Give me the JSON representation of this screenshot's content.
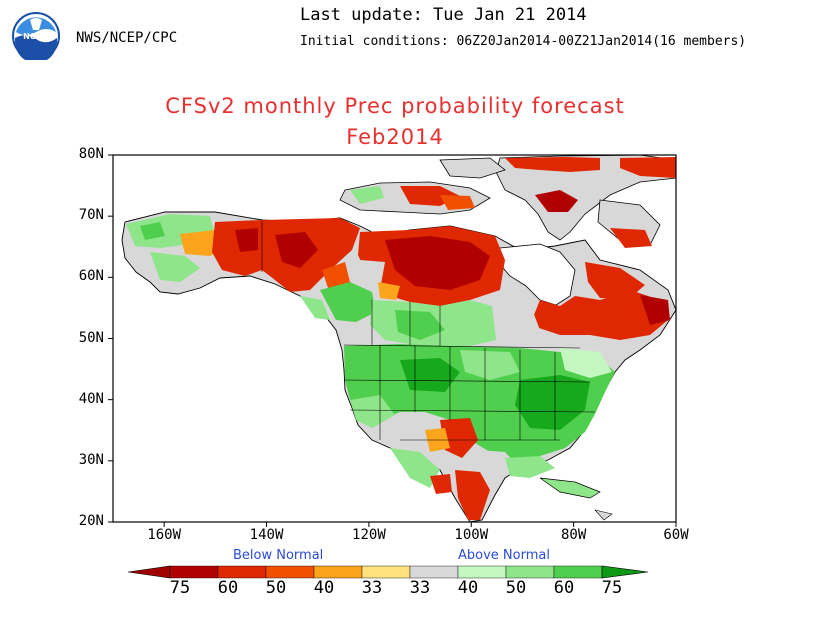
{
  "header": {
    "logo_text": "NOAA",
    "agency": "NWS/NCEP/CPC",
    "last_update": "Last update: Tue Jan 21 2014",
    "initial_conditions": "Initial conditions: 06Z20Jan2014-00Z21Jan2014(16 members)"
  },
  "title": {
    "line1": "CFSv2 monthly Prec probability forecast",
    "line2": "Feb2014"
  },
  "map": {
    "lat_labels": [
      "80N",
      "70N",
      "60N",
      "50N",
      "40N",
      "30N",
      "20N"
    ],
    "lon_labels": [
      "160W",
      "140W",
      "120W",
      "100W",
      "80W",
      "60W"
    ],
    "lon_range": [
      -170,
      -60
    ],
    "lat_range": [
      20,
      80
    ]
  },
  "legend": {
    "below_label": "Below Normal",
    "above_label": "Above Normal",
    "values": [
      "75",
      "60",
      "50",
      "40",
      "33",
      "33",
      "40",
      "50",
      "60",
      "75"
    ],
    "colors": [
      "#b00000",
      "#e02800",
      "#f05000",
      "#fba41c",
      "#ffe27d",
      "#d8d8d8",
      "#c4f7c0",
      "#8ee58a",
      "#4fcf4d",
      "#17a91c"
    ],
    "arrow_left": "#a00000",
    "arrow_right": "#0e9915"
  },
  "colors": {
    "title": "#e8302f",
    "legend_heading": "#2b4bd6",
    "land_neutral": "#d8d8d8",
    "ocean": "#ffffff"
  }
}
